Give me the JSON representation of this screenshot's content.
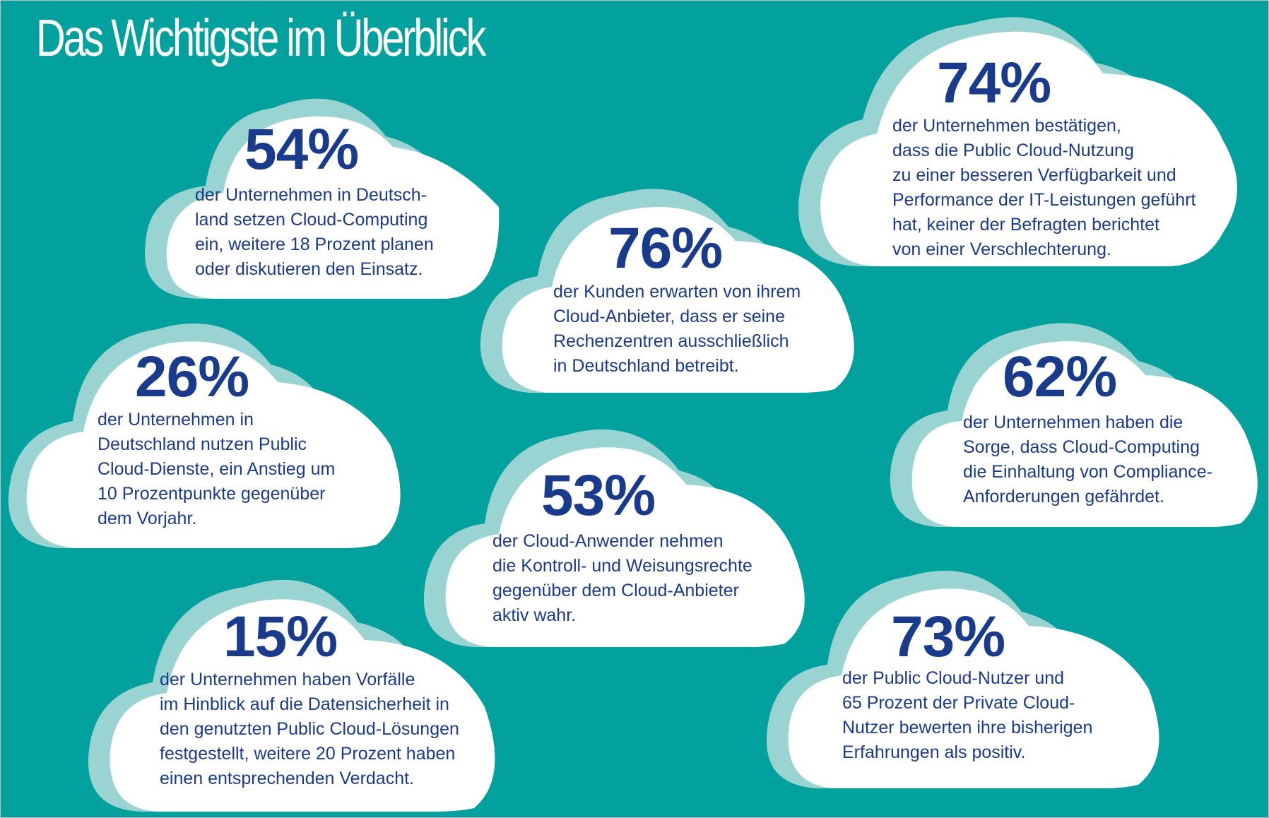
{
  "title": "Das Wichtigste im Überblick",
  "colors": {
    "background": "#02a19d",
    "cloud": "#ffffff",
    "cloud_shadow": "#9ad4d2",
    "text": "#1a3a8c"
  },
  "stats": [
    {
      "percent": "54%",
      "text": "der Unternehmen in Deutsch-\nland setzen Cloud-Computing\nein, weitere 18 Prozent planen\noder diskutieren den Einsatz."
    },
    {
      "percent": "74%",
      "text": "der Unternehmen bestätigen,\ndass die Public Cloud-Nutzung\nzu einer besseren Verfügbarkeit und\nPerformance der IT-Leistungen geführt\nhat, keiner der Befragten berichtet\nvon einer Verschlechterung."
    },
    {
      "percent": "76%",
      "text": "der Kunden erwarten von ihrem\nCloud-Anbieter, dass er seine\nRechenzentren ausschließlich\nin Deutschland betreibt."
    },
    {
      "percent": "26%",
      "text": "der Unternehmen in\nDeutschland nutzen Public\nCloud-Dienste, ein Anstieg um\n10 Prozentpunkte gegenüber\ndem Vorjahr."
    },
    {
      "percent": "62%",
      "text": "der Unternehmen haben die\nSorge, dass Cloud-Computing\ndie Einhaltung von Compliance-\nAnforderungen gefährdet."
    },
    {
      "percent": "53%",
      "text": "der Cloud-Anwender nehmen\ndie Kontroll- und Weisungsrechte\ngegenüber dem Cloud-Anbieter\naktiv wahr."
    },
    {
      "percent": "15%",
      "text": "der Unternehmen haben Vorfälle\nim Hinblick auf die Datensicherheit in\nden genutzten Public Cloud-Lösungen\nfestgestellt, weitere 20 Prozent haben\neinen entsprechenden Verdacht."
    },
    {
      "percent": "73%",
      "text": "der Public Cloud-Nutzer und\n65 Prozent der Private Cloud-\nNutzer bewerten ihre bisherigen\nErfahrungen als positiv."
    }
  ]
}
